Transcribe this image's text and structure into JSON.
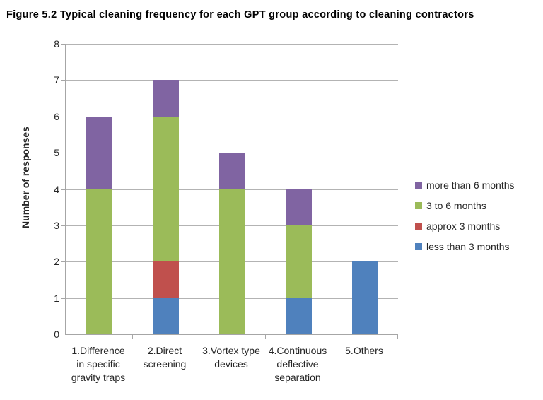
{
  "figure": {
    "title": "Figure 5.2 Typical cleaning frequency for each GPT group according to cleaning contractors"
  },
  "chart_data": {
    "type": "bar",
    "stacked": true,
    "title": "Figure 5.2 Typical cleaning frequency for each GPT group according to cleaning contractors",
    "xlabel": "",
    "ylabel": "Number of responses",
    "ylim": [
      0,
      8
    ],
    "ytick_step": 1,
    "grid": "horizontal",
    "legend_position": "right",
    "legend_labels_top_to_bottom": [
      "more than 6 months",
      "3 to 6 months",
      "approx 3 months",
      "less than 3 months"
    ],
    "categories": [
      "1.Difference\nin specific\ngravity traps",
      "2.Direct\nscreening",
      "3.Vortex type\ndevices",
      "4.Continuous\ndeflective\nseparation",
      "5.Others"
    ],
    "series": [
      {
        "name": "less than 3 months",
        "color": "#4F81BD",
        "values": [
          0,
          1,
          0,
          1,
          2
        ]
      },
      {
        "name": "approx 3 months",
        "color": "#C0504D",
        "values": [
          0,
          1,
          0,
          0,
          0
        ]
      },
      {
        "name": "3 to 6 months",
        "color": "#9BBB59",
        "values": [
          4,
          4,
          4,
          2,
          0
        ]
      },
      {
        "name": "more than 6 months",
        "color": "#8064A2",
        "values": [
          2,
          1,
          1,
          1,
          0
        ]
      }
    ],
    "colors": {
      "axis": "#A6A6A6",
      "gridline": "#B3B3B3",
      "text": "#262626"
    }
  }
}
